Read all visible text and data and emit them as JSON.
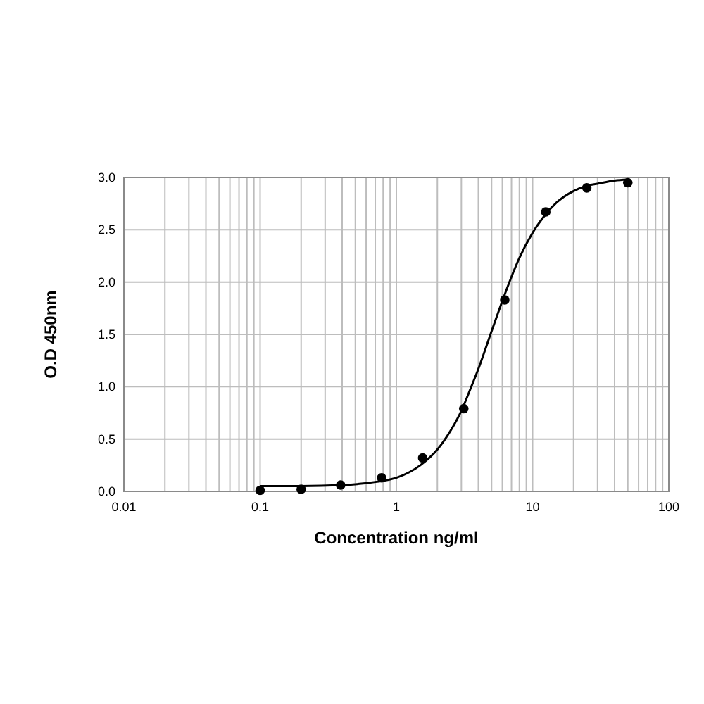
{
  "chart_data": {
    "type": "scatter",
    "xlabel": "Concentration ng/ml",
    "ylabel": "O.D 450nm",
    "log": "x",
    "grid": true,
    "marker": "circle",
    "xlim": [
      0.01,
      100
    ],
    "ylim": [
      0,
      3
    ],
    "xticks": [
      0.01,
      {
        "value": 0.02,
        "label": null
      },
      {
        "value": 0.03,
        "label": null
      },
      {
        "value": 0.04,
        "label": null
      },
      {
        "value": 0.05,
        "label": null
      },
      {
        "value": 0.06,
        "label": null
      },
      {
        "value": 0.07,
        "label": null
      },
      {
        "value": 0.08,
        "label": null
      },
      {
        "value": 0.09,
        "label": null
      },
      0.1,
      {
        "value": 0.2,
        "label": null
      },
      {
        "value": 0.3,
        "label": null
      },
      {
        "value": 0.4,
        "label": null
      },
      {
        "value": 0.5,
        "label": null
      },
      {
        "value": 0.6,
        "label": null
      },
      {
        "value": 0.7,
        "label": null
      },
      {
        "value": 0.8,
        "label": null
      },
      {
        "value": 0.9,
        "label": null
      },
      1,
      {
        "value": 2,
        "label": null
      },
      {
        "value": 3,
        "label": null
      },
      {
        "value": 4,
        "label": null
      },
      {
        "value": 5,
        "label": null
      },
      {
        "value": 6,
        "label": null
      },
      {
        "value": 7,
        "label": null
      },
      {
        "value": 8,
        "label": null
      },
      {
        "value": 9,
        "label": null
      },
      10,
      {
        "value": 20,
        "label": null
      },
      {
        "value": 30,
        "label": null
      },
      {
        "value": 40,
        "label": null
      },
      {
        "value": 50,
        "label": null
      },
      {
        "value": 60,
        "label": null
      },
      {
        "value": 70,
        "label": null
      },
      {
        "value": 80,
        "label": null
      },
      {
        "value": 90,
        "label": null
      },
      100
    ],
    "yticks": [
      {
        "value": 0,
        "label": "0.0"
      },
      0.5,
      {
        "value": 1,
        "label": "1.0"
      },
      1.5,
      {
        "value": 2,
        "label": "2.0"
      },
      2.5,
      {
        "value": 3,
        "label": "3.0"
      }
    ],
    "series": [
      {
        "type": "line",
        "marker": "none",
        "color": "#000000",
        "x": [
          0.1,
          0.2,
          0.4,
          0.7,
          1,
          1.5,
          2,
          2.5,
          3,
          3.5,
          4,
          5,
          6,
          7,
          8,
          10,
          12,
          15,
          20,
          25,
          30,
          40,
          50
        ],
        "values": [
          0.05,
          0.05,
          0.06,
          0.09,
          0.13,
          0.25,
          0.4,
          0.58,
          0.77,
          0.98,
          1.17,
          1.53,
          1.82,
          2.05,
          2.23,
          2.47,
          2.62,
          2.76,
          2.87,
          2.92,
          2.94,
          2.97,
          2.98
        ]
      },
      {
        "color": "#000000",
        "x": [
          0.1,
          0.2,
          0.39,
          0.78,
          1.56,
          3.125,
          6.25,
          12.5,
          25,
          50
        ],
        "values": [
          0.01,
          0.02,
          0.06,
          0.13,
          0.32,
          0.79,
          1.83,
          2.67,
          2.9,
          2.95
        ]
      }
    ]
  }
}
